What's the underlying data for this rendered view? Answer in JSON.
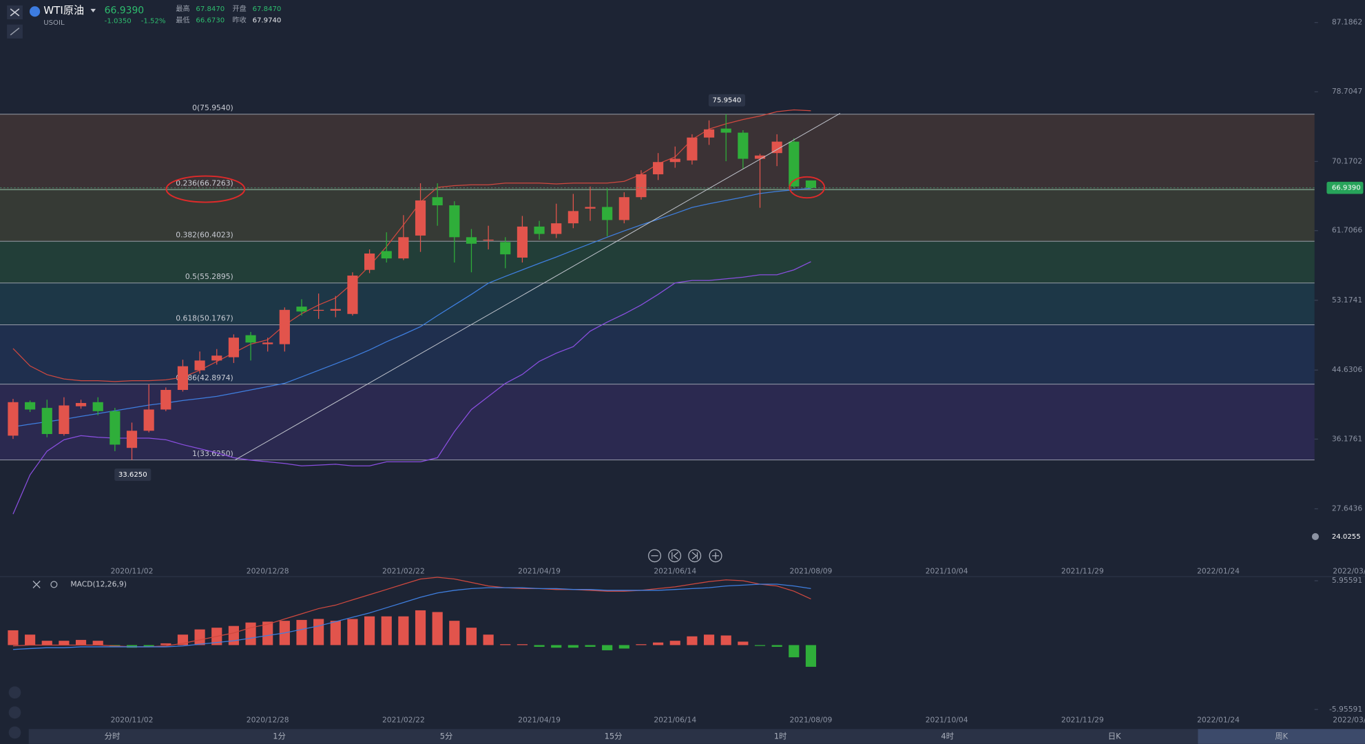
{
  "header": {
    "symbol": "WTI原油",
    "code": "USOIL",
    "price": "66.9390",
    "change": "-1.0350",
    "change_pct": "-1.52%",
    "stats": [
      {
        "label": "最高",
        "value": "67.8470"
      },
      {
        "label": "开盘",
        "value": "67.8470"
      },
      {
        "label": "最低",
        "value": "66.6730"
      },
      {
        "label": "昨收",
        "value": "67.9740"
      }
    ]
  },
  "chart_data": {
    "type": "candlestick",
    "categories": [
      null,
      null,
      null,
      null,
      null,
      null,
      null,
      "2020/11/02",
      null,
      null,
      null,
      null,
      null,
      null,
      null,
      "2020/12/28",
      null,
      null,
      null,
      null,
      null,
      null,
      null,
      "2021/02/22",
      null,
      null,
      null,
      null,
      null,
      null,
      null,
      "2021/04/19",
      null,
      null,
      null,
      null,
      null,
      null,
      null,
      "2021/06/14",
      null,
      null,
      null,
      null,
      null,
      null,
      null,
      "2021/08/09"
    ],
    "future_categories": [
      "2021/10/04",
      "2021/11/29",
      "2022/01/24",
      "2022/03/21"
    ],
    "price": {
      "ylim": [
        22.75,
        89.92
      ],
      "yticks": [
        87.1862,
        78.7047,
        70.1702,
        61.7066,
        53.1741,
        44.6306,
        36.1761,
        27.6436
      ],
      "up_color": "#e2544c",
      "down_color": "#2fae3a",
      "open": [
        36.6,
        40.7,
        40.0,
        36.8,
        40.2,
        40.7,
        39.6,
        35.1,
        37.2,
        39.8,
        42.2,
        44.6,
        45.8,
        46.2,
        48.9,
        47.8,
        47.8,
        52.4,
        51.9,
        51.9,
        51.5,
        56.9,
        59.2,
        58.3,
        61.1,
        65.8,
        64.8,
        60.9,
        60.5,
        60.3,
        58.4,
        62.2,
        61.3,
        62.6,
        64.4,
        64.6,
        63.0,
        65.8,
        68.6,
        70.1,
        70.3,
        73.1,
        74.2,
        73.7,
        70.5,
        71.2,
        72.6,
        67.847
      ],
      "high": [
        41.1,
        40.9,
        41.0,
        41.3,
        41.0,
        41.3,
        40.0,
        38.2,
        42.9,
        42.5,
        45.9,
        46.9,
        47.2,
        49.0,
        49.3,
        48.6,
        52.3,
        53.3,
        54.0,
        53.7,
        56.6,
        59.4,
        61.5,
        63.6,
        67.5,
        67.5,
        65.3,
        61.9,
        62.3,
        60.9,
        63.5,
        62.9,
        65.0,
        66.2,
        67.1,
        66.9,
        66.4,
        69.1,
        71.2,
        72.0,
        73.5,
        75.2,
        75.954,
        74.0,
        71.1,
        73.5,
        73.0,
        67.847
      ],
      "low": [
        36.2,
        39.5,
        36.4,
        36.6,
        39.9,
        39.1,
        34.7,
        33.625,
        37.0,
        39.6,
        42.0,
        44.2,
        45.3,
        45.5,
        45.8,
        46.9,
        46.9,
        51.3,
        50.9,
        51.1,
        51.3,
        56.5,
        57.8,
        58.1,
        59.1,
        62.3,
        57.8,
        56.6,
        59.4,
        57.1,
        57.8,
        60.6,
        60.8,
        62.0,
        62.9,
        61.0,
        62.6,
        65.5,
        67.9,
        69.4,
        69.8,
        72.2,
        70.2,
        69.3,
        64.5,
        69.6,
        66.9,
        66.673
      ],
      "close": [
        40.7,
        39.8,
        36.8,
        40.3,
        40.6,
        39.6,
        35.5,
        37.2,
        39.8,
        42.2,
        45.1,
        45.8,
        46.4,
        48.6,
        48.0,
        48.0,
        52.0,
        51.8,
        52.0,
        52.1,
        56.2,
        58.9,
        58.3,
        60.9,
        65.4,
        64.8,
        60.9,
        60.1,
        60.6,
        58.8,
        62.2,
        61.3,
        62.6,
        64.1,
        64.6,
        63.0,
        65.8,
        68.6,
        70.1,
        70.5,
        73.1,
        74.1,
        73.7,
        70.5,
        70.9,
        72.6,
        67.1,
        66.939
      ],
      "fib_levels": [
        {
          "value": 75.954,
          "label": "0(75.9540)"
        },
        {
          "value": 66.7263,
          "label": "0.236(66.7263)"
        },
        {
          "value": 60.4023,
          "label": "0.382(60.4023)"
        },
        {
          "value": 55.2895,
          "label": "0.5(55.2895)"
        },
        {
          "value": 50.1767,
          "label": "0.618(50.1767)"
        },
        {
          "value": 42.8974,
          "label": "0.786(42.8974)"
        },
        {
          "value": 33.625,
          "label": "1(33.6250)"
        }
      ],
      "fib_zone_colors": [
        "#3b3235",
        "#363a35",
        "#223e38",
        "#1d3747",
        "#1f2f4e",
        "#2b2950"
      ],
      "bands": [
        {
          "color": "#d0493f",
          "values": [
            47.27,
            45.14,
            44.07,
            43.54,
            43.33,
            43.33,
            43.22,
            43.33,
            43.33,
            43.43,
            43.75,
            44.61,
            45.67,
            46.74,
            47.81,
            48.34,
            50.15,
            51.54,
            52.6,
            53.46,
            55.27,
            57.4,
            59.75,
            62.41,
            65.18,
            67.0,
            67.21,
            67.32,
            67.32,
            67.53,
            67.53,
            67.53,
            67.42,
            67.53,
            67.53,
            67.53,
            67.74,
            68.6,
            69.88,
            70.73,
            72.86,
            74.14,
            74.78,
            75.31,
            75.74,
            76.27,
            76.49,
            76.38
          ]
        },
        {
          "color": "#3f7fe0",
          "values": [
            37.68,
            38.0,
            38.3,
            38.6,
            38.96,
            39.3,
            39.65,
            40.0,
            40.34,
            40.6,
            40.9,
            41.15,
            41.41,
            41.8,
            42.2,
            42.6,
            43.01,
            43.8,
            44.6,
            45.4,
            46.21,
            47.1,
            48.1,
            49.0,
            49.94,
            51.3,
            52.6,
            53.9,
            55.27,
            56.1,
            56.9,
            57.7,
            58.47,
            59.3,
            60.1,
            60.9,
            61.67,
            62.4,
            63.1,
            63.8,
            64.54,
            65.0,
            65.4,
            65.8,
            66.25,
            66.5,
            66.7,
            66.89
          ]
        },
        {
          "color": "#8a4fe0",
          "values": [
            27.0,
            31.8,
            34.7,
            36.1,
            36.6,
            36.4,
            36.3,
            36.3,
            36.3,
            36.1,
            35.5,
            35.0,
            34.5,
            33.9,
            33.6,
            33.4,
            33.2,
            32.9,
            33.0,
            33.1,
            32.9,
            32.9,
            33.4,
            33.4,
            33.4,
            33.9,
            37.1,
            39.8,
            41.4,
            43.0,
            44.1,
            45.7,
            46.7,
            47.5,
            49.4,
            50.5,
            51.5,
            52.6,
            53.9,
            55.3,
            55.6,
            55.6,
            55.8,
            56.0,
            56.3,
            56.3,
            56.9,
            57.9
          ]
        }
      ],
      "max_label": "75.9540",
      "min_label": "33.6250",
      "last_tag": "66.9390",
      "cursor_tag": "24.0255"
    },
    "macd": {
      "title": "MACD(12,26,9)",
      "ylim": [
        -6.4,
        6.5
      ],
      "yticks": [
        5.95591,
        -5.95591
      ],
      "up_color": "#e2544c",
      "down_color": "#2fae3a",
      "histogram": [
        1.37,
        0.97,
        0.4,
        0.4,
        0.48,
        0.4,
        -0.16,
        -0.24,
        -0.16,
        0.16,
        0.97,
        1.45,
        1.61,
        1.77,
        2.09,
        2.17,
        2.25,
        2.33,
        2.42,
        2.25,
        2.42,
        2.66,
        2.66,
        2.66,
        3.22,
        3.06,
        2.25,
        1.61,
        0.97,
        0.08,
        0.08,
        -0.16,
        -0.24,
        -0.24,
        -0.16,
        -0.48,
        -0.32,
        0.08,
        0.24,
        0.4,
        0.81,
        0.97,
        0.89,
        0.32,
        -0.08,
        -0.16,
        -1.13,
        -2.01
      ],
      "lines": [
        {
          "color": "#d0493f",
          "values": [
            -0.08,
            0,
            0,
            0,
            0,
            0,
            -0.08,
            -0.16,
            -0.16,
            -0.08,
            0.16,
            0.48,
            0.81,
            1.13,
            1.61,
            1.93,
            2.42,
            2.9,
            3.38,
            3.7,
            4.19,
            4.67,
            5.15,
            5.64,
            6.12,
            6.28,
            6.12,
            5.8,
            5.47,
            5.31,
            5.23,
            5.23,
            5.15,
            5.15,
            5.07,
            4.99,
            4.99,
            5.07,
            5.23,
            5.39,
            5.64,
            5.88,
            6.04,
            5.96,
            5.64,
            5.47,
            4.99,
            4.27
          ]
        },
        {
          "color": "#3f7fe0",
          "values": [
            -0.4,
            -0.32,
            -0.24,
            -0.24,
            -0.16,
            -0.16,
            -0.16,
            -0.16,
            -0.16,
            -0.16,
            -0.08,
            0.08,
            0.24,
            0.4,
            0.64,
            0.89,
            1.13,
            1.45,
            1.77,
            2.17,
            2.58,
            2.98,
            3.46,
            3.94,
            4.43,
            4.83,
            5.07,
            5.23,
            5.31,
            5.31,
            5.31,
            5.23,
            5.23,
            5.15,
            5.15,
            5.07,
            5.07,
            5.07,
            5.07,
            5.15,
            5.23,
            5.31,
            5.47,
            5.55,
            5.64,
            5.64,
            5.47,
            5.23
          ]
        }
      ]
    }
  },
  "tabs": [
    "分时",
    "1分",
    "5分",
    "15分",
    "1时",
    "4时",
    "日K",
    "周K"
  ]
}
